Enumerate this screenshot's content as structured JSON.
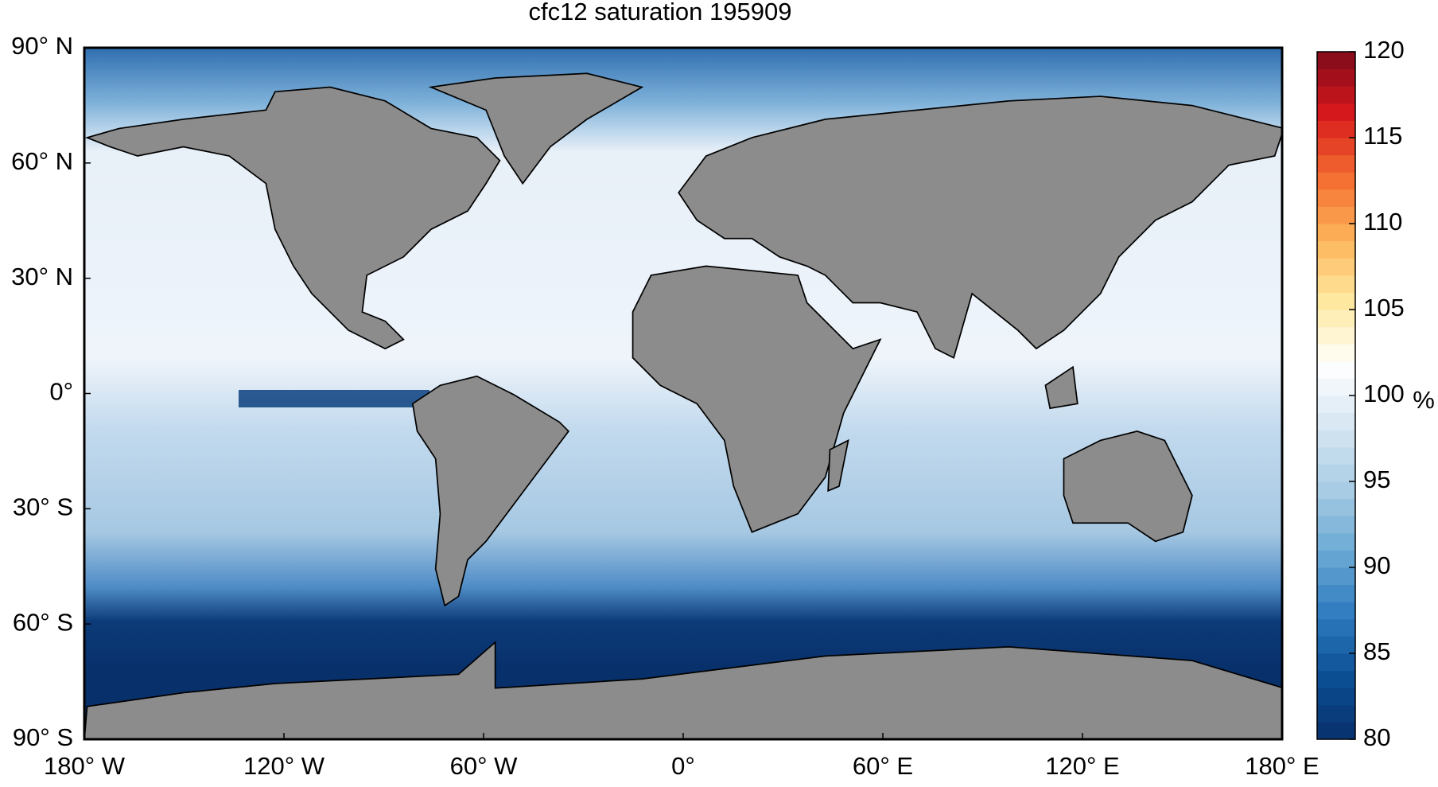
{
  "chart_data": {
    "type": "map",
    "title": "cfc12 saturation 195909",
    "xlim": [
      -180,
      180
    ],
    "xticks": [
      {
        "value": -180,
        "label": "180° W"
      },
      {
        "value": -120,
        "label": "120° W"
      },
      {
        "value": -60,
        "label": "60° W"
      },
      {
        "value": 0,
        "label": "0°"
      },
      {
        "value": 60,
        "label": "60° E"
      },
      {
        "value": 120,
        "label": "120° E"
      },
      {
        "value": 180,
        "label": "180° E"
      }
    ],
    "ylim": [
      -90,
      90
    ],
    "yticks": [
      {
        "value": 90,
        "label": "90° N"
      },
      {
        "value": 60,
        "label": "60° N"
      },
      {
        "value": 30,
        "label": "30° N"
      },
      {
        "value": 0,
        "label": "0°"
      },
      {
        "value": -30,
        "label": "30° S"
      },
      {
        "value": -60,
        "label": "60° S"
      },
      {
        "value": -90,
        "label": "90° S"
      }
    ],
    "colorbar": {
      "clim": [
        80,
        120
      ],
      "ticks": [
        80,
        85,
        90,
        95,
        100,
        105,
        110,
        115,
        120
      ],
      "unit": "%",
      "colormap": [
        "#08306b",
        "#0b4f94",
        "#2f7bbf",
        "#6aa9d4",
        "#a9cce4",
        "#d6e6f2",
        "#ffffff",
        "#fee9a0",
        "#fdb45a",
        "#f46d30",
        "#d7191c",
        "#7f0a1a"
      ]
    }
  }
}
